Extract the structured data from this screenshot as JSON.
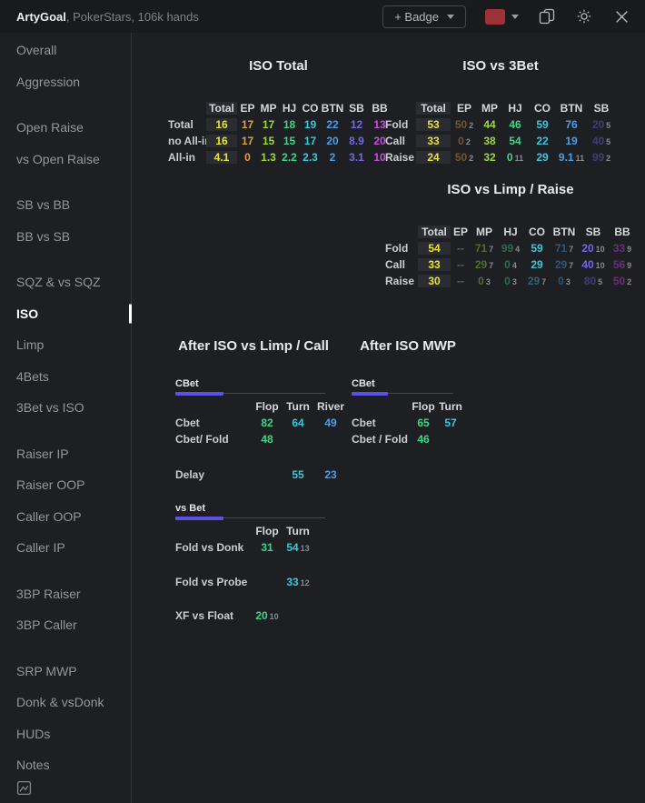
{
  "header": {
    "app_name": "ArtyGoal",
    "subtitle": ", PokerStars, 106k hands",
    "badge_button": "+ Badge",
    "swatch_color": "#9e3239"
  },
  "icons": {
    "chevron_down_icon": "css-triangle",
    "copy_icon": "svg-two-pages",
    "gear_icon": "svg-gear",
    "close_icon": "svg-x",
    "image_icon": "svg-picture"
  },
  "colors": {
    "total": "#e6e33e",
    "ep": "#e0a23a",
    "mp": "#9fd63d",
    "hj": "#3fd687",
    "co": "#3cc7d8",
    "btn": "#4a9fe8",
    "sb": "#7a63e8",
    "bb": "#c94be4",
    "flop": "#3fd687",
    "turn": "#3cc7d8",
    "river": "#4a9fe8",
    "muted": "#5d5e63",
    "accent": "#5b50e8",
    "highlight_bg": "#2b2c31",
    "subscript": "#88898d",
    "selected": "#ffffff"
  },
  "sidebar": {
    "groups": [
      {
        "items": [
          {
            "label": "Overall"
          },
          {
            "label": "Aggression"
          }
        ]
      },
      {
        "items": [
          {
            "label": "Open Raise"
          },
          {
            "label": "vs Open Raise"
          }
        ]
      },
      {
        "items": [
          {
            "label": "SB vs BB"
          },
          {
            "label": "BB vs SB"
          }
        ]
      },
      {
        "items": [
          {
            "label": "SQZ & vs SQZ"
          },
          {
            "label": "ISO",
            "selected": true
          },
          {
            "label": "Limp"
          },
          {
            "label": "4Bets"
          },
          {
            "label": "3Bet vs ISO"
          }
        ]
      },
      {
        "items": [
          {
            "label": "Raiser IP"
          },
          {
            "label": "Raiser OOP"
          },
          {
            "label": "Caller OOP"
          },
          {
            "label": "Caller IP"
          }
        ]
      },
      {
        "items": [
          {
            "label": "3BP Raiser"
          },
          {
            "label": "3BP Caller"
          }
        ]
      },
      {
        "items": [
          {
            "label": "SRP MWP"
          },
          {
            "label": "Donk & vsDonk"
          },
          {
            "label": "HUDs"
          },
          {
            "label": "Notes"
          }
        ]
      }
    ]
  },
  "sections": {
    "iso_total": {
      "title": "ISO Total",
      "table": {
        "headers": [
          "Total",
          "EP",
          "MP",
          "HJ",
          "CO",
          "BTN",
          "SB",
          "BB"
        ],
        "col_colors": [
          "total",
          "ep",
          "mp",
          "hj",
          "co",
          "btn",
          "sb",
          "bb"
        ],
        "highlight_col": 0,
        "rows": [
          {
            "label": "Total",
            "cells": [
              {
                "v": "16"
              },
              {
                "v": "17"
              },
              {
                "v": "17"
              },
              {
                "v": "18"
              },
              {
                "v": "19"
              },
              {
                "v": "22"
              },
              {
                "v": "12"
              },
              {
                "v": "13"
              }
            ]
          },
          {
            "label": "no All-in",
            "cells": [
              {
                "v": "16"
              },
              {
                "v": "17"
              },
              {
                "v": "15"
              },
              {
                "v": "15"
              },
              {
                "v": "17"
              },
              {
                "v": "20"
              },
              {
                "v": "8.9"
              },
              {
                "v": "20"
              }
            ]
          },
          {
            "label": "All-in",
            "cells": [
              {
                "v": "4.1"
              },
              {
                "v": "0"
              },
              {
                "v": "1.3"
              },
              {
                "v": "2.2"
              },
              {
                "v": "2.3"
              },
              {
                "v": "2"
              },
              {
                "v": "3.1"
              },
              {
                "v": "10"
              }
            ]
          }
        ]
      }
    },
    "iso_vs_3bet": {
      "title": "ISO vs 3Bet",
      "table": {
        "headers": [
          "Total",
          "EP",
          "MP",
          "HJ",
          "CO",
          "BTN",
          "SB"
        ],
        "col_colors": [
          "total",
          "ep",
          "mp",
          "hj",
          "co",
          "btn",
          "sb"
        ],
        "highlight_col": 0,
        "rows": [
          {
            "label": "Fold",
            "cells": [
              {
                "v": "53"
              },
              {
                "v": "50",
                "dim": true,
                "sub": "2"
              },
              {
                "v": "44"
              },
              {
                "v": "46"
              },
              {
                "v": "59"
              },
              {
                "v": "76"
              },
              {
                "v": "20",
                "dim": true,
                "sub": "5"
              }
            ]
          },
          {
            "label": "Call",
            "cells": [
              {
                "v": "33"
              },
              {
                "v": "0",
                "dim": true,
                "sub": "2"
              },
              {
                "v": "38"
              },
              {
                "v": "54"
              },
              {
                "v": "22"
              },
              {
                "v": "19"
              },
              {
                "v": "40",
                "dim": true,
                "sub": "5"
              }
            ]
          },
          {
            "label": "Raise",
            "cells": [
              {
                "v": "24"
              },
              {
                "v": "50",
                "dim": true,
                "sub": "2"
              },
              {
                "v": "32"
              },
              {
                "v": "0",
                "sub": "11"
              },
              {
                "v": "29"
              },
              {
                "v": "9.1",
                "sub": "11"
              },
              {
                "v": "99",
                "dim": true,
                "sub": "2"
              }
            ]
          }
        ]
      }
    },
    "iso_vs_limp_raise": {
      "title": "ISO vs Limp / Raise",
      "table": {
        "headers": [
          "Total",
          "EP",
          "MP",
          "HJ",
          "CO",
          "BTN",
          "SB",
          "BB"
        ],
        "col_colors": [
          "total",
          "ep",
          "mp",
          "hj",
          "co",
          "btn",
          "sb",
          "bb"
        ],
        "highlight_col": 0,
        "rows": [
          {
            "label": "Fold",
            "cells": [
              {
                "v": "54"
              },
              {
                "v": "--",
                "c": "muted"
              },
              {
                "v": "71",
                "dim": true,
                "sub": "7"
              },
              {
                "v": "99",
                "dim": true,
                "sub": "4"
              },
              {
                "v": "59"
              },
              {
                "v": "71",
                "dim": true,
                "sub": "7"
              },
              {
                "v": "20",
                "sub": "10"
              },
              {
                "v": "33",
                "dim": true,
                "sub": "9"
              }
            ]
          },
          {
            "label": "Call",
            "cells": [
              {
                "v": "33"
              },
              {
                "v": "--",
                "c": "muted"
              },
              {
                "v": "29",
                "dim": true,
                "sub": "7"
              },
              {
                "v": "0",
                "dim": true,
                "sub": "4"
              },
              {
                "v": "29"
              },
              {
                "v": "29",
                "dim": true,
                "sub": "7"
              },
              {
                "v": "40",
                "sub": "10"
              },
              {
                "v": "56",
                "dim": true,
                "sub": "9"
              }
            ]
          },
          {
            "label": "Raise",
            "cells": [
              {
                "v": "30"
              },
              {
                "v": "--",
                "c": "muted"
              },
              {
                "v": "0",
                "dim": true,
                "sub": "3"
              },
              {
                "v": "0",
                "dim": true,
                "sub": "3"
              },
              {
                "v": "29",
                "dim": true,
                "sub": "7"
              },
              {
                "v": "0",
                "dim": true,
                "sub": "3"
              },
              {
                "v": "80",
                "dim": true,
                "sub": "5"
              },
              {
                "v": "50",
                "dim": true,
                "sub": "2"
              }
            ]
          }
        ]
      }
    },
    "after_iso_limp_call": {
      "title": "After ISO vs Limp / Call",
      "blocks": [
        {
          "label": "CBet",
          "headers": [
            "Flop",
            "Turn",
            "River"
          ],
          "col_colors": [
            "flop",
            "turn",
            "river"
          ],
          "rows": [
            {
              "label": "Cbet",
              "cells": [
                {
                  "v": "82"
                },
                {
                  "v": "64"
                },
                {
                  "v": "49"
                }
              ]
            },
            {
              "label": "Cbet/ Fold",
              "cells": [
                {
                  "v": "48"
                },
                null,
                null
              ]
            },
            {
              "label": "Delay",
              "gap": 21,
              "cells": [
                null,
                {
                  "v": "55"
                },
                {
                  "v": "23"
                }
              ]
            }
          ]
        },
        {
          "label": "vs Bet",
          "headers": [
            "Flop",
            "Turn"
          ],
          "col_colors": [
            "flop",
            "turn"
          ],
          "rows": [
            {
              "label": "Fold vs Donk",
              "cells": [
                {
                  "v": "31"
                },
                {
                  "v": "54",
                  "sub": "13"
                }
              ]
            },
            {
              "label": "Fold vs Probe",
              "gap": 20,
              "cells": [
                null,
                {
                  "v": "33",
                  "sub": "12"
                }
              ]
            },
            {
              "label": "XF vs Float",
              "gap": 19,
              "cells": [
                {
                  "v": "20",
                  "sub": "10"
                },
                null
              ]
            }
          ]
        }
      ]
    },
    "after_iso_mwp": {
      "title": "After ISO MWP",
      "blocks": [
        {
          "label": "CBet",
          "headers": [
            "Flop",
            "Turn"
          ],
          "col_colors": [
            "flop",
            "turn"
          ],
          "rows": [
            {
              "label": "Cbet",
              "cells": [
                {
                  "v": "65"
                },
                {
                  "v": "57"
                }
              ]
            },
            {
              "label": "Cbet / Fold",
              "cells": [
                {
                  "v": "46"
                },
                null
              ]
            }
          ]
        }
      ]
    }
  }
}
